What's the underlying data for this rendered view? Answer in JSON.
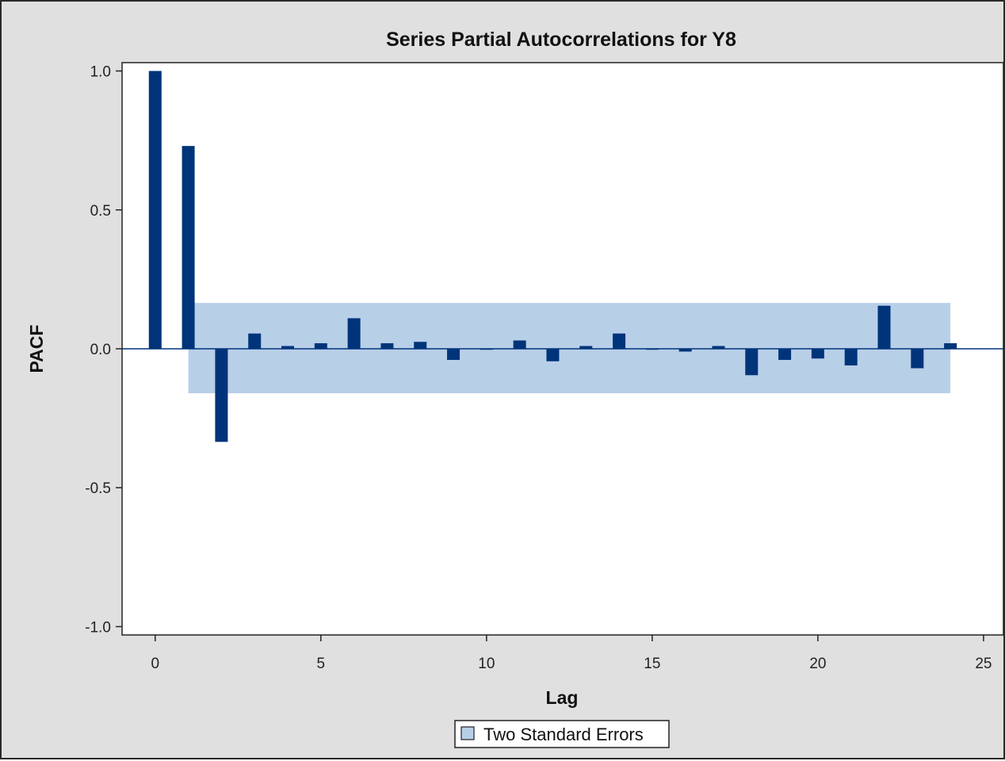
{
  "chart_data": {
    "type": "bar",
    "title": "Series Partial Autocorrelations for Y8",
    "xlabel": "Lag",
    "ylabel": "PACF",
    "xlim": [
      -1,
      25.6
    ],
    "ylim": [
      -1.03,
      1.03
    ],
    "xticks": [
      0,
      5,
      10,
      15,
      20,
      25
    ],
    "xtick_labels": [
      "0",
      "5",
      "10",
      "15",
      "20",
      "25"
    ],
    "yticks": [
      1.0,
      0.5,
      0.0,
      -0.5,
      -1.0
    ],
    "ytick_labels": [
      "1.0",
      "0.5",
      "0.0",
      "-0.5",
      "-1.0"
    ],
    "x": [
      0,
      1,
      2,
      3,
      4,
      5,
      6,
      7,
      8,
      9,
      10,
      11,
      12,
      13,
      14,
      15,
      16,
      17,
      18,
      19,
      20,
      21,
      22,
      23,
      24
    ],
    "values": [
      1.0,
      0.73,
      -0.335,
      0.055,
      0.01,
      0.02,
      0.11,
      0.02,
      0.025,
      -0.04,
      0.0,
      0.03,
      -0.045,
      0.01,
      0.055,
      0.0,
      -0.01,
      0.01,
      -0.095,
      -0.04,
      -0.035,
      -0.06,
      0.155,
      -0.07,
      0.02
    ],
    "two_std_errors": {
      "x_from": 1,
      "x_to": 24,
      "upper": 0.165,
      "lower": -0.16
    },
    "legend": {
      "entries": [
        "Two Standard Errors"
      ],
      "position": "bottom-center"
    },
    "grid": false
  },
  "colors": {
    "bar": "#00347a",
    "band": "#b8cfe8",
    "zero_line": "#00347a",
    "background": "#e0e0e0",
    "plot_background": "#ffffff"
  }
}
